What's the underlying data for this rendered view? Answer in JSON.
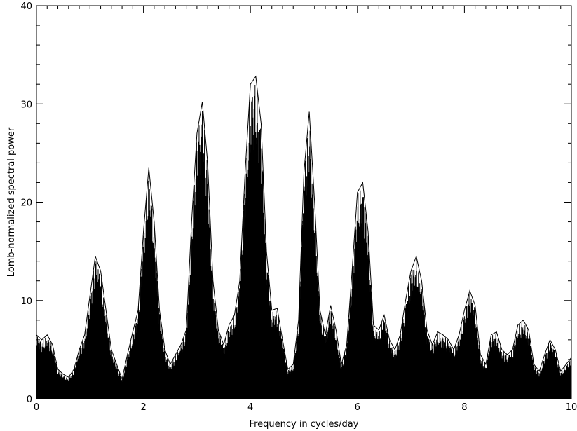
{
  "chart_data": {
    "type": "area",
    "xlabel": "Frequency in cycles/day",
    "ylabel": "Lomb-normalized spectral power",
    "xlim": [
      0,
      10
    ],
    "ylim": [
      0,
      40
    ],
    "x_ticks": [
      0,
      2,
      4,
      6,
      8,
      10
    ],
    "y_ticks": [
      0,
      10,
      20,
      30,
      40
    ],
    "x_tick_labels": [
      "0",
      "2",
      "4",
      "6",
      "8",
      "10"
    ],
    "y_tick_labels": [
      "0",
      "10",
      "20",
      "30",
      "40"
    ],
    "grid": false,
    "fill_color": "#000000",
    "series": [
      {
        "x": [
          0.0,
          0.1,
          0.2,
          0.3,
          0.4,
          0.5,
          0.6,
          0.7,
          0.8,
          0.9,
          1.0,
          1.1,
          1.2,
          1.3,
          1.4,
          1.5,
          1.6,
          1.7,
          1.8,
          1.9,
          2.0,
          2.1,
          2.2,
          2.3,
          2.4,
          2.5,
          2.6,
          2.7,
          2.8,
          2.9,
          3.0,
          3.1,
          3.2,
          3.3,
          3.4,
          3.5,
          3.6,
          3.7,
          3.8,
          3.9,
          4.0,
          4.1,
          4.2,
          4.3,
          4.4,
          4.5,
          4.6,
          4.7,
          4.8,
          4.9,
          5.0,
          5.1,
          5.2,
          5.3,
          5.4,
          5.5,
          5.6,
          5.7,
          5.8,
          5.9,
          6.0,
          6.1,
          6.2,
          6.3,
          6.4,
          6.5,
          6.6,
          6.7,
          6.8,
          6.9,
          7.0,
          7.1,
          7.2,
          7.3,
          7.4,
          7.5,
          7.6,
          7.7,
          7.8,
          7.9,
          8.0,
          8.1,
          8.2,
          8.3,
          8.4,
          8.5,
          8.6,
          8.7,
          8.8,
          8.9,
          9.0,
          9.1,
          9.2,
          9.3,
          9.4,
          9.5,
          9.6,
          9.7,
          9.8,
          9.9,
          10.0
        ],
        "values": [
          6.5,
          6.0,
          6.5,
          5.5,
          3.0,
          2.5,
          2.2,
          3.0,
          5.0,
          6.5,
          10.5,
          14.5,
          13.0,
          9.0,
          5.0,
          3.5,
          2.0,
          4.5,
          6.8,
          9.0,
          17.0,
          23.5,
          18.0,
          9.0,
          5.0,
          3.5,
          4.5,
          5.5,
          7.0,
          18.0,
          27.0,
          30.2,
          24.0,
          12.0,
          7.0,
          5.5,
          7.5,
          8.5,
          12.0,
          23.0,
          32.0,
          32.8,
          28.0,
          15.0,
          9.0,
          9.2,
          6.0,
          3.0,
          3.5,
          8.0,
          23.0,
          29.2,
          20.0,
          9.0,
          6.5,
          9.5,
          7.0,
          3.5,
          5.5,
          13.0,
          21.0,
          22.0,
          17.0,
          7.5,
          7.0,
          8.5,
          6.0,
          5.0,
          6.5,
          10.0,
          13.0,
          14.5,
          12.0,
          7.0,
          5.5,
          6.8,
          6.5,
          6.0,
          5.0,
          6.5,
          9.0,
          11.0,
          9.5,
          4.5,
          3.5,
          6.5,
          6.8,
          5.0,
          4.5,
          5.0,
          7.5,
          8.0,
          7.0,
          3.5,
          2.8,
          4.5,
          6.0,
          5.0,
          2.8,
          3.5,
          4.2
        ]
      }
    ]
  }
}
